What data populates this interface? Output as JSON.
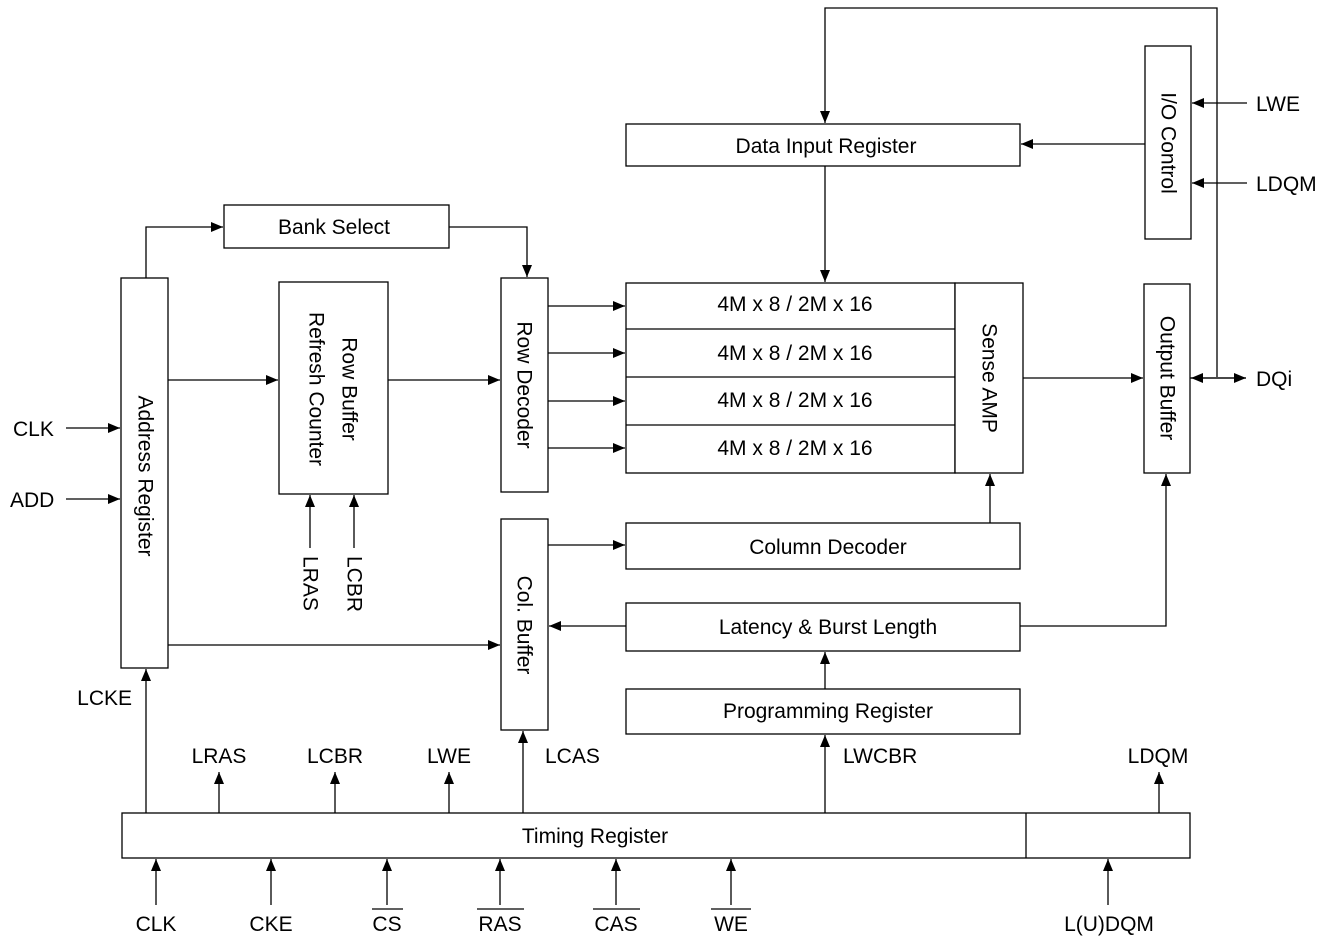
{
  "blocks": {
    "data_input_register": "Data Input Register",
    "io_control": "I/O Control",
    "bank_select": "Bank Select",
    "address_register": "Address Register",
    "row_buffer": "Row Buffer",
    "refresh_counter": "Refresh Counter",
    "row_decoder": "Row Decoder",
    "memory_banks": [
      "4M x 8 / 2M x 16",
      "4M x 8 / 2M x 16",
      "4M x 8 / 2M x 16",
      "4M x 8 / 2M x 16"
    ],
    "sense_amp": "Sense AMP",
    "output_buffer": "Output Buffer",
    "col_buffer": "Col. Buffer",
    "column_decoder": "Column Decoder",
    "latency_burst": "Latency & Burst Length",
    "programming_register": "Programming Register",
    "timing_register": "Timing Register"
  },
  "signals": {
    "lwe_io": "LWE",
    "ldqm_io": "LDQM",
    "dqi": "DQi",
    "clk_left": "CLK",
    "add": "ADD",
    "lras_row": "LRAS",
    "lcbr_row": "LCBR",
    "lcke": "LCKE",
    "lras": "LRAS",
    "lcbr": "LCBR",
    "lwe": "LWE",
    "lcas": "LCAS",
    "lwcbr": "LWCBR",
    "ldqm": "LDQM"
  },
  "inputs": {
    "clk": "CLK",
    "cke": "CKE",
    "cs": "CS",
    "ras": "RAS",
    "cas": "CAS",
    "we": "WE",
    "ludqm": "L(U)DQM"
  }
}
